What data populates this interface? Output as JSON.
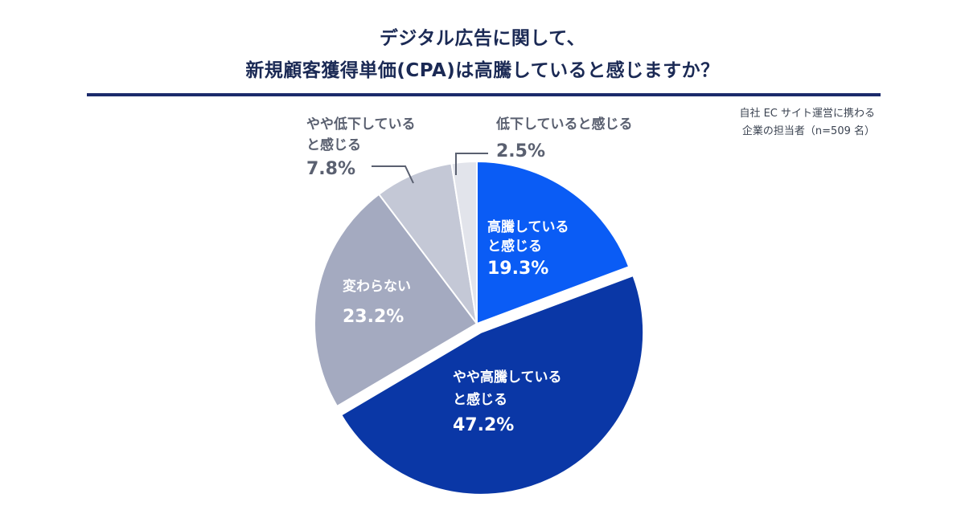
{
  "title_line1": "デジタル広告に関して、",
  "title_line2": "新規顧客獲得単価(CPA)は高騰していると感じますか？",
  "note_line1": "自社 EC サイト運営に携わる",
  "note_line2": "企業の担当者（n=509 名）",
  "chart_data": {
    "type": "pie",
    "title": "デジタル広告に関して、新規顧客獲得単価(CPA)は高騰していると感じますか？",
    "slices": [
      {
        "label_lines": [
          "高騰している",
          "と感じる"
        ],
        "value": 19.3,
        "display": "19.3%",
        "color": "#0a5cf5"
      },
      {
        "label_lines": [
          "やや高騰している",
          "と感じる"
        ],
        "value": 47.2,
        "display": "47.2%",
        "color": "#0a37a6"
      },
      {
        "label_lines": [
          "変わらない"
        ],
        "value": 23.2,
        "display": "23.2%",
        "color": "#a4aac0"
      },
      {
        "label_lines": [
          "やや低下している",
          "と感じる"
        ],
        "value": 7.8,
        "display": "7.8%",
        "color": "#c4c8d6"
      },
      {
        "label_lines": [
          "低下していると感じる"
        ],
        "value": 2.5,
        "display": "2.5%",
        "color": "#e2e4eb"
      }
    ]
  }
}
